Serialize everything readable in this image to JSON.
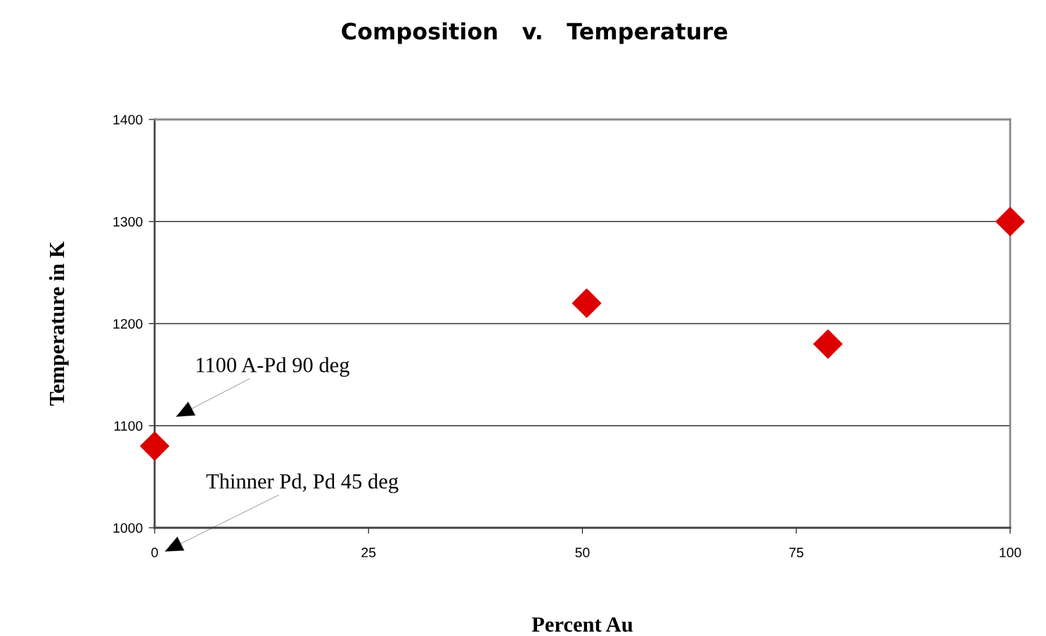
{
  "chart_data": {
    "type": "scatter",
    "title": "Composition   v.   Temperature",
    "xlabel": "Percent Au",
    "ylabel": "Temperature in K",
    "x": [
      0,
      50.5,
      78.7,
      100
    ],
    "series": [
      {
        "color": "#dd0000",
        "values": [
          1080,
          1220,
          1180,
          1300
        ]
      }
    ],
    "xlim": [
      0,
      100
    ],
    "xticks": [
      0,
      25,
      50,
      75,
      100
    ],
    "ylim": [
      1000,
      1400
    ],
    "yticks": [
      1000,
      1100,
      1200,
      1300,
      1400
    ],
    "grid": "y",
    "marker": "diamond",
    "legend": false,
    "annotations": [
      "1100 A-Pd 90 deg",
      "Thinner Pd, Pd 45 deg"
    ]
  }
}
